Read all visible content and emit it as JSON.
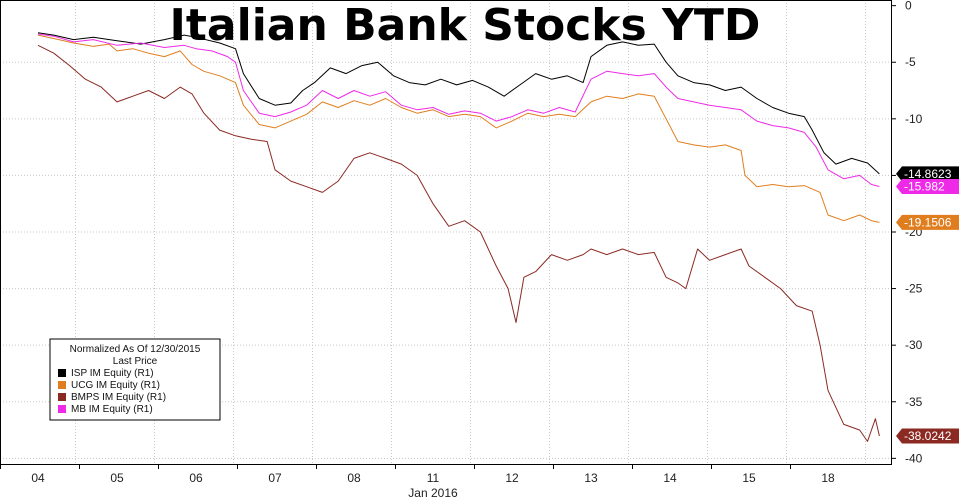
{
  "chart_data": {
    "type": "line",
    "title": "Italian Bank Stocks YTD",
    "xlabel": "Jan 2016",
    "ylabel": "",
    "x_tick_labels": [
      "04",
      "05",
      "06",
      "07",
      "08",
      "11",
      "12",
      "13",
      "14",
      "15",
      "18"
    ],
    "y_ticks": [
      0,
      -5,
      -10,
      -15,
      -20,
      -25,
      -30,
      -35,
      -40
    ],
    "ylim": [
      -40.5,
      0.5
    ],
    "grid": true,
    "legend": {
      "placement": "bottom-left",
      "header_line1": "Normalized As Of 12/30/2015",
      "header_line2": "Last Price"
    },
    "series": [
      {
        "name": "ISP IM Equity  (R1)",
        "color": "#000000",
        "last_label": "-14.8623",
        "last": -14.8623,
        "points": [
          [
            0,
            -2.4
          ],
          [
            0.2,
            -2.6
          ],
          [
            0.45,
            -3.0
          ],
          [
            0.7,
            -2.8
          ],
          [
            1.0,
            -3.1
          ],
          [
            1.3,
            -3.4
          ],
          [
            1.6,
            -3.0
          ],
          [
            1.85,
            -2.6
          ],
          [
            2.0,
            -2.8
          ],
          [
            2.3,
            -3.3
          ],
          [
            2.5,
            -3.8
          ],
          [
            2.6,
            -6.0
          ],
          [
            2.8,
            -8.2
          ],
          [
            3.0,
            -8.8
          ],
          [
            3.2,
            -8.6
          ],
          [
            3.35,
            -7.5
          ],
          [
            3.5,
            -6.8
          ],
          [
            3.7,
            -5.5
          ],
          [
            3.9,
            -6.0
          ],
          [
            4.1,
            -5.3
          ],
          [
            4.3,
            -5.0
          ],
          [
            4.5,
            -6.2
          ],
          [
            4.7,
            -6.8
          ],
          [
            4.9,
            -7.0
          ],
          [
            5.1,
            -6.5
          ],
          [
            5.3,
            -7.0
          ],
          [
            5.5,
            -6.6
          ],
          [
            5.7,
            -7.2
          ],
          [
            5.9,
            -8.0
          ],
          [
            6.1,
            -7.0
          ],
          [
            6.3,
            -6.0
          ],
          [
            6.5,
            -6.5
          ],
          [
            6.7,
            -6.2
          ],
          [
            6.9,
            -6.8
          ],
          [
            7.0,
            -4.5
          ],
          [
            7.2,
            -3.5
          ],
          [
            7.4,
            -3.2
          ],
          [
            7.6,
            -3.5
          ],
          [
            7.8,
            -3.4
          ],
          [
            7.95,
            -5.0
          ],
          [
            8.1,
            -6.2
          ],
          [
            8.3,
            -6.8
          ],
          [
            8.5,
            -7.0
          ],
          [
            8.7,
            -7.5
          ],
          [
            8.9,
            -7.2
          ],
          [
            9.1,
            -8.2
          ],
          [
            9.3,
            -9.0
          ],
          [
            9.5,
            -9.5
          ],
          [
            9.7,
            -9.8
          ],
          [
            9.8,
            -11.0
          ],
          [
            9.95,
            -13.0
          ],
          [
            10.1,
            -14.0
          ],
          [
            10.3,
            -13.5
          ],
          [
            10.5,
            -13.9
          ],
          [
            10.65,
            -14.8623
          ]
        ]
      },
      {
        "name": "UCG IM Equity  (R1)",
        "color": "#e07e1f",
        "last_label": "-19.1506",
        "last": -19.1506,
        "points": [
          [
            0,
            -2.6
          ],
          [
            0.2,
            -2.9
          ],
          [
            0.45,
            -3.3
          ],
          [
            0.7,
            -3.6
          ],
          [
            0.9,
            -3.4
          ],
          [
            1.0,
            -4.0
          ],
          [
            1.2,
            -3.8
          ],
          [
            1.4,
            -4.2
          ],
          [
            1.6,
            -4.5
          ],
          [
            1.8,
            -4.0
          ],
          [
            1.95,
            -5.2
          ],
          [
            2.1,
            -5.8
          ],
          [
            2.3,
            -6.2
          ],
          [
            2.5,
            -6.8
          ],
          [
            2.6,
            -8.8
          ],
          [
            2.8,
            -10.5
          ],
          [
            3.0,
            -10.8
          ],
          [
            3.2,
            -10.2
          ],
          [
            3.4,
            -9.6
          ],
          [
            3.6,
            -8.5
          ],
          [
            3.8,
            -9.0
          ],
          [
            4.0,
            -8.4
          ],
          [
            4.2,
            -8.8
          ],
          [
            4.4,
            -8.2
          ],
          [
            4.6,
            -9.0
          ],
          [
            4.8,
            -9.5
          ],
          [
            5.0,
            -9.2
          ],
          [
            5.2,
            -9.8
          ],
          [
            5.4,
            -9.6
          ],
          [
            5.6,
            -9.8
          ],
          [
            5.8,
            -10.8
          ],
          [
            6.0,
            -10.2
          ],
          [
            6.2,
            -9.5
          ],
          [
            6.4,
            -9.8
          ],
          [
            6.6,
            -9.6
          ],
          [
            6.8,
            -9.8
          ],
          [
            7.0,
            -8.5
          ],
          [
            7.2,
            -8.0
          ],
          [
            7.4,
            -8.2
          ],
          [
            7.6,
            -7.8
          ],
          [
            7.8,
            -8.0
          ],
          [
            7.95,
            -10.0
          ],
          [
            8.1,
            -12.0
          ],
          [
            8.3,
            -12.3
          ],
          [
            8.5,
            -12.5
          ],
          [
            8.7,
            -12.3
          ],
          [
            8.9,
            -12.8
          ],
          [
            8.95,
            -15.0
          ],
          [
            9.1,
            -16.0
          ],
          [
            9.3,
            -15.8
          ],
          [
            9.5,
            -16.0
          ],
          [
            9.7,
            -15.9
          ],
          [
            9.9,
            -16.5
          ],
          [
            10.0,
            -18.5
          ],
          [
            10.2,
            -19.0
          ],
          [
            10.4,
            -18.5
          ],
          [
            10.55,
            -19.0
          ],
          [
            10.65,
            -19.1506
          ]
        ]
      },
      {
        "name": "BMPS IM Equity  (R1)",
        "color": "#8b2a23",
        "last_label": "-38.0242",
        "last": -38.0242,
        "points": [
          [
            0,
            -3.5
          ],
          [
            0.2,
            -4.2
          ],
          [
            0.4,
            -5.3
          ],
          [
            0.6,
            -6.5
          ],
          [
            0.8,
            -7.2
          ],
          [
            1.0,
            -8.5
          ],
          [
            1.2,
            -8.0
          ],
          [
            1.4,
            -7.5
          ],
          [
            1.6,
            -8.2
          ],
          [
            1.8,
            -7.2
          ],
          [
            1.95,
            -7.8
          ],
          [
            2.1,
            -9.5
          ],
          [
            2.3,
            -11.0
          ],
          [
            2.5,
            -11.5
          ],
          [
            2.7,
            -11.8
          ],
          [
            2.9,
            -12.0
          ],
          [
            3.0,
            -14.5
          ],
          [
            3.2,
            -15.5
          ],
          [
            3.4,
            -16.0
          ],
          [
            3.6,
            -16.5
          ],
          [
            3.8,
            -15.5
          ],
          [
            4.0,
            -13.5
          ],
          [
            4.2,
            -13.0
          ],
          [
            4.4,
            -13.5
          ],
          [
            4.6,
            -14.0
          ],
          [
            4.8,
            -15.0
          ],
          [
            5.0,
            -17.5
          ],
          [
            5.2,
            -19.5
          ],
          [
            5.4,
            -19.0
          ],
          [
            5.6,
            -20.0
          ],
          [
            5.8,
            -23.0
          ],
          [
            5.95,
            -25.0
          ],
          [
            6.05,
            -28.0
          ],
          [
            6.15,
            -24.0
          ],
          [
            6.3,
            -23.5
          ],
          [
            6.5,
            -22.0
          ],
          [
            6.7,
            -22.5
          ],
          [
            6.9,
            -22.0
          ],
          [
            7.0,
            -21.5
          ],
          [
            7.2,
            -22.0
          ],
          [
            7.4,
            -21.5
          ],
          [
            7.6,
            -22.0
          ],
          [
            7.8,
            -21.8
          ],
          [
            7.95,
            -24.0
          ],
          [
            8.1,
            -24.5
          ],
          [
            8.2,
            -25.0
          ],
          [
            8.35,
            -21.5
          ],
          [
            8.5,
            -22.5
          ],
          [
            8.7,
            -22.0
          ],
          [
            8.9,
            -21.5
          ],
          [
            9.0,
            -23.0
          ],
          [
            9.2,
            -24.0
          ],
          [
            9.4,
            -25.0
          ],
          [
            9.6,
            -26.5
          ],
          [
            9.8,
            -27.0
          ],
          [
            9.9,
            -30.0
          ],
          [
            10.0,
            -34.0
          ],
          [
            10.2,
            -37.0
          ],
          [
            10.4,
            -37.5
          ],
          [
            10.5,
            -38.5
          ],
          [
            10.6,
            -36.5
          ],
          [
            10.65,
            -38.0242
          ]
        ]
      },
      {
        "name": "MB IM Equity  (R1)",
        "color": "#ee2ae8",
        "last_label": "-15.982",
        "last": -15.982,
        "points": [
          [
            0,
            -2.5
          ],
          [
            0.2,
            -2.7
          ],
          [
            0.45,
            -3.2
          ],
          [
            0.7,
            -3.0
          ],
          [
            1.0,
            -3.5
          ],
          [
            1.3,
            -3.3
          ],
          [
            1.6,
            -3.7
          ],
          [
            1.85,
            -3.5
          ],
          [
            2.0,
            -3.8
          ],
          [
            2.2,
            -4.0
          ],
          [
            2.4,
            -4.5
          ],
          [
            2.5,
            -5.0
          ],
          [
            2.6,
            -7.5
          ],
          [
            2.8,
            -9.5
          ],
          [
            3.0,
            -9.8
          ],
          [
            3.2,
            -9.4
          ],
          [
            3.4,
            -8.8
          ],
          [
            3.6,
            -7.5
          ],
          [
            3.8,
            -8.2
          ],
          [
            4.0,
            -7.5
          ],
          [
            4.2,
            -8.0
          ],
          [
            4.4,
            -7.6
          ],
          [
            4.6,
            -8.8
          ],
          [
            4.8,
            -9.2
          ],
          [
            5.0,
            -9.0
          ],
          [
            5.2,
            -9.6
          ],
          [
            5.4,
            -9.3
          ],
          [
            5.6,
            -9.5
          ],
          [
            5.8,
            -10.2
          ],
          [
            6.0,
            -9.8
          ],
          [
            6.2,
            -9.2
          ],
          [
            6.4,
            -9.5
          ],
          [
            6.6,
            -9.0
          ],
          [
            6.8,
            -9.4
          ],
          [
            7.0,
            -6.5
          ],
          [
            7.2,
            -5.8
          ],
          [
            7.4,
            -6.0
          ],
          [
            7.6,
            -6.2
          ],
          [
            7.8,
            -6.0
          ],
          [
            7.95,
            -7.2
          ],
          [
            8.1,
            -8.2
          ],
          [
            8.3,
            -8.5
          ],
          [
            8.5,
            -8.8
          ],
          [
            8.7,
            -9.0
          ],
          [
            8.9,
            -9.2
          ],
          [
            9.1,
            -10.2
          ],
          [
            9.3,
            -10.6
          ],
          [
            9.5,
            -10.8
          ],
          [
            9.7,
            -11.2
          ],
          [
            9.85,
            -12.5
          ],
          [
            10.0,
            -14.5
          ],
          [
            10.2,
            -15.3
          ],
          [
            10.4,
            -15.0
          ],
          [
            10.55,
            -15.8
          ],
          [
            10.65,
            -15.982
          ]
        ]
      }
    ]
  }
}
